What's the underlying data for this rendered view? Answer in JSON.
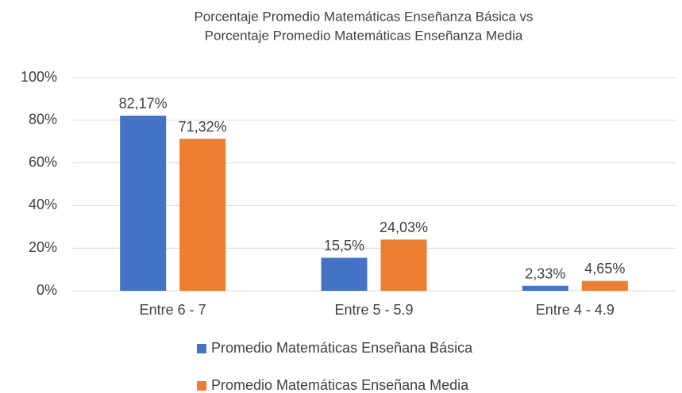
{
  "chart_data": {
    "type": "bar",
    "title": [
      "Porcentaje Promedio Matemáticas Enseñanza Básica vs",
      "Porcentaje Promedio Matemáticas Enseñanza Media"
    ],
    "categories": [
      "Entre 6 - 7",
      "Entre 5 - 5.9",
      "Entre 4 - 4.9"
    ],
    "series": [
      {
        "name": "Promedio Matemáticas Enseñana Básica",
        "color": "#4472c4",
        "values": [
          82.17,
          15.5,
          2.33
        ],
        "value_labels": [
          "82,17%",
          "15,5%",
          "2,33%"
        ]
      },
      {
        "name": "Promedio Matemáticas Enseñana Media",
        "color": "#ed7d31",
        "values": [
          71.32,
          24.03,
          4.65
        ],
        "value_labels": [
          "71,32%",
          "24,03%",
          "4,65%"
        ]
      }
    ],
    "ylim": [
      0,
      100
    ],
    "yticks": [
      {
        "value": 0,
        "label": "0%"
      },
      {
        "value": 20,
        "label": "20%"
      },
      {
        "value": 40,
        "label": "40%"
      },
      {
        "value": 60,
        "label": "60%"
      },
      {
        "value": 80,
        "label": "80%"
      },
      {
        "value": 100,
        "label": "100%"
      }
    ],
    "grid": true,
    "legend": "bottom"
  }
}
